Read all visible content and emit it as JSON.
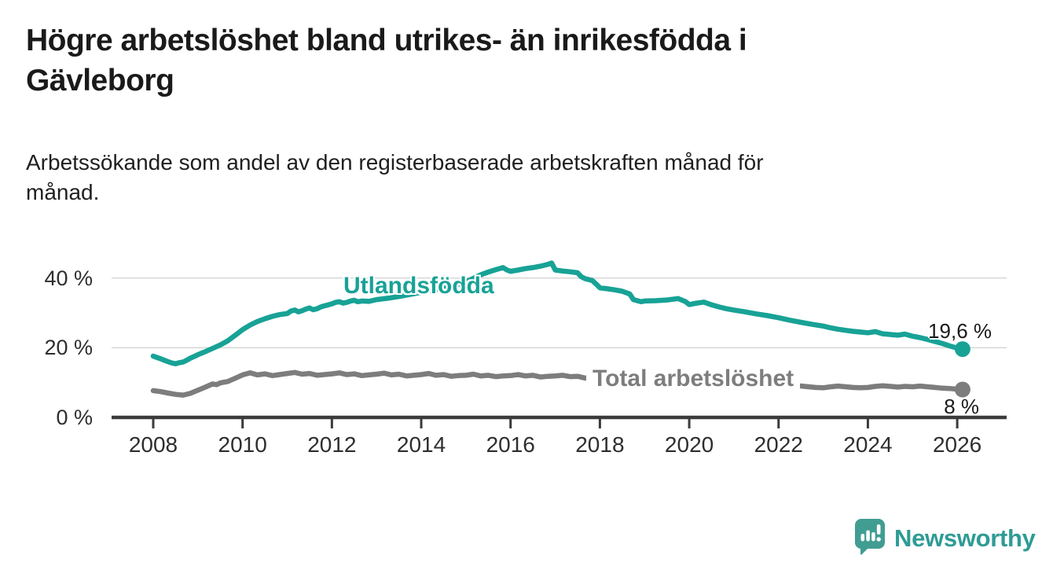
{
  "header": {
    "title": "Högre arbetslöshet bland utrikes- än inrikesfödda i\nGävleborg",
    "subtitle": "Arbetssökande som andel av den registerbaserade arbetskraften månad för\nmånad."
  },
  "chart_data": {
    "type": "line",
    "title": "Högre arbetslöshet bland utrikes- än inrikesfödda i Gävleborg",
    "xlabel": "",
    "ylabel": "Arbetssökande som andel av den registerbaserade arbetskraften",
    "xlim": [
      2007.1,
      2027.1
    ],
    "ylim": [
      0,
      47
    ],
    "grid": "horizontal",
    "legend_position": "inline-labels",
    "x_ticks": [
      {
        "value": 2008,
        "label": "2008"
      },
      {
        "value": 2010,
        "label": "2010"
      },
      {
        "value": 2012,
        "label": "2012"
      },
      {
        "value": 2014,
        "label": "2014"
      },
      {
        "value": 2016,
        "label": "2016"
      },
      {
        "value": 2018,
        "label": "2018"
      },
      {
        "value": 2020,
        "label": "2020"
      },
      {
        "value": 2022,
        "label": "2022"
      },
      {
        "value": 2024,
        "label": "2024"
      },
      {
        "value": 2026,
        "label": "2026"
      }
    ],
    "y_ticks": [
      {
        "value": 0,
        "label": "0 %"
      },
      {
        "value": 20,
        "label": "20 %"
      },
      {
        "value": 40,
        "label": "40 %"
      }
    ],
    "series": [
      {
        "name": "Utlandsfödda",
        "color": "#18A296",
        "end_label": "19,6 %",
        "end_value": 19.6,
        "points": [
          [
            2008.0,
            17.6
          ],
          [
            2008.08,
            17.2
          ],
          [
            2008.17,
            16.8
          ],
          [
            2008.25,
            16.4
          ],
          [
            2008.33,
            16.0
          ],
          [
            2008.42,
            15.6
          ],
          [
            2008.5,
            15.4
          ],
          [
            2008.58,
            15.7
          ],
          [
            2008.67,
            15.9
          ],
          [
            2008.75,
            16.4
          ],
          [
            2008.83,
            17.0
          ],
          [
            2008.92,
            17.5
          ],
          [
            2009.0,
            18.0
          ],
          [
            2009.17,
            18.9
          ],
          [
            2009.33,
            19.8
          ],
          [
            2009.5,
            20.8
          ],
          [
            2009.67,
            22.0
          ],
          [
            2009.83,
            23.5
          ],
          [
            2010.0,
            25.2
          ],
          [
            2010.17,
            26.5
          ],
          [
            2010.33,
            27.5
          ],
          [
            2010.5,
            28.3
          ],
          [
            2010.67,
            29.0
          ],
          [
            2010.83,
            29.5
          ],
          [
            2011.0,
            29.8
          ],
          [
            2011.08,
            30.5
          ],
          [
            2011.17,
            30.8
          ],
          [
            2011.25,
            30.3
          ],
          [
            2011.33,
            30.6
          ],
          [
            2011.42,
            31.1
          ],
          [
            2011.5,
            31.4
          ],
          [
            2011.58,
            30.9
          ],
          [
            2011.67,
            31.2
          ],
          [
            2011.75,
            31.7
          ],
          [
            2011.83,
            32.0
          ],
          [
            2011.92,
            32.3
          ],
          [
            2012.0,
            32.6
          ],
          [
            2012.08,
            33.0
          ],
          [
            2012.17,
            33.2
          ],
          [
            2012.25,
            32.8
          ],
          [
            2012.33,
            33.0
          ],
          [
            2012.42,
            33.4
          ],
          [
            2012.5,
            33.6
          ],
          [
            2012.58,
            33.2
          ],
          [
            2012.67,
            33.4
          ],
          [
            2012.83,
            33.3
          ],
          [
            2013.0,
            33.8
          ],
          [
            2013.25,
            34.2
          ],
          [
            2013.5,
            34.7
          ],
          [
            2013.75,
            35.3
          ],
          [
            2014.0,
            35.9
          ],
          [
            2014.25,
            36.5
          ],
          [
            2014.5,
            37.1
          ],
          [
            2014.75,
            37.9
          ],
          [
            2015.0,
            38.9
          ],
          [
            2015.17,
            39.9
          ],
          [
            2015.33,
            40.9
          ],
          [
            2015.5,
            41.7
          ],
          [
            2015.67,
            42.4
          ],
          [
            2015.83,
            43.0
          ],
          [
            2015.92,
            42.3
          ],
          [
            2016.0,
            41.9
          ],
          [
            2016.17,
            42.3
          ],
          [
            2016.33,
            42.7
          ],
          [
            2016.5,
            43.0
          ],
          [
            2016.67,
            43.4
          ],
          [
            2016.83,
            43.9
          ],
          [
            2016.92,
            44.3
          ],
          [
            2017.0,
            42.3
          ],
          [
            2017.17,
            42.0
          ],
          [
            2017.33,
            41.8
          ],
          [
            2017.5,
            41.5
          ],
          [
            2017.58,
            40.4
          ],
          [
            2017.67,
            39.8
          ],
          [
            2017.83,
            39.3
          ],
          [
            2017.92,
            38.2
          ],
          [
            2018.0,
            37.2
          ],
          [
            2018.17,
            36.9
          ],
          [
            2018.33,
            36.6
          ],
          [
            2018.5,
            36.2
          ],
          [
            2018.67,
            35.4
          ],
          [
            2018.75,
            33.8
          ],
          [
            2018.92,
            33.2
          ],
          [
            2019.0,
            33.4
          ],
          [
            2019.25,
            33.5
          ],
          [
            2019.5,
            33.7
          ],
          [
            2019.75,
            34.1
          ],
          [
            2019.92,
            33.2
          ],
          [
            2020.0,
            32.4
          ],
          [
            2020.17,
            32.8
          ],
          [
            2020.33,
            33.1
          ],
          [
            2020.5,
            32.3
          ],
          [
            2020.67,
            31.7
          ],
          [
            2020.83,
            31.2
          ],
          [
            2021.0,
            30.8
          ],
          [
            2021.25,
            30.3
          ],
          [
            2021.5,
            29.7
          ],
          [
            2021.75,
            29.2
          ],
          [
            2022.0,
            28.6
          ],
          [
            2022.25,
            27.9
          ],
          [
            2022.5,
            27.3
          ],
          [
            2022.75,
            26.7
          ],
          [
            2023.0,
            26.2
          ],
          [
            2023.17,
            25.7
          ],
          [
            2023.33,
            25.3
          ],
          [
            2023.5,
            25.0
          ],
          [
            2023.67,
            24.7
          ],
          [
            2023.83,
            24.5
          ],
          [
            2024.0,
            24.3
          ],
          [
            2024.17,
            24.6
          ],
          [
            2024.33,
            24.0
          ],
          [
            2024.5,
            23.8
          ],
          [
            2024.67,
            23.6
          ],
          [
            2024.83,
            23.9
          ],
          [
            2025.0,
            23.3
          ],
          [
            2025.17,
            22.9
          ],
          [
            2025.33,
            22.4
          ],
          [
            2025.5,
            21.8
          ],
          [
            2025.67,
            21.2
          ],
          [
            2025.83,
            20.5
          ],
          [
            2026.0,
            19.9
          ],
          [
            2026.12,
            19.6
          ]
        ]
      },
      {
        "name": "Total arbetslöshet",
        "color": "#7D7D7D",
        "end_label": "8 %",
        "end_value": 8,
        "points": [
          [
            2008.0,
            7.7
          ],
          [
            2008.17,
            7.4
          ],
          [
            2008.33,
            7.0
          ],
          [
            2008.5,
            6.6
          ],
          [
            2008.67,
            6.4
          ],
          [
            2008.83,
            6.9
          ],
          [
            2009.0,
            7.8
          ],
          [
            2009.17,
            8.7
          ],
          [
            2009.33,
            9.6
          ],
          [
            2009.42,
            9.4
          ],
          [
            2009.5,
            9.9
          ],
          [
            2009.67,
            10.3
          ],
          [
            2009.83,
            11.2
          ],
          [
            2010.0,
            12.2
          ],
          [
            2010.17,
            12.8
          ],
          [
            2010.33,
            12.2
          ],
          [
            2010.5,
            12.5
          ],
          [
            2010.67,
            12.0
          ],
          [
            2010.83,
            12.3
          ],
          [
            2011.0,
            12.6
          ],
          [
            2011.17,
            12.9
          ],
          [
            2011.33,
            12.4
          ],
          [
            2011.5,
            12.6
          ],
          [
            2011.67,
            12.1
          ],
          [
            2011.83,
            12.3
          ],
          [
            2012.0,
            12.5
          ],
          [
            2012.17,
            12.8
          ],
          [
            2012.33,
            12.3
          ],
          [
            2012.5,
            12.5
          ],
          [
            2012.67,
            12.0
          ],
          [
            2012.83,
            12.2
          ],
          [
            2013.0,
            12.4
          ],
          [
            2013.17,
            12.7
          ],
          [
            2013.33,
            12.2
          ],
          [
            2013.5,
            12.4
          ],
          [
            2013.67,
            11.9
          ],
          [
            2013.83,
            12.1
          ],
          [
            2014.0,
            12.3
          ],
          [
            2014.17,
            12.6
          ],
          [
            2014.33,
            12.1
          ],
          [
            2014.5,
            12.3
          ],
          [
            2014.67,
            11.8
          ],
          [
            2014.83,
            12.0
          ],
          [
            2015.0,
            12.1
          ],
          [
            2015.17,
            12.4
          ],
          [
            2015.33,
            11.9
          ],
          [
            2015.5,
            12.1
          ],
          [
            2015.67,
            11.7
          ],
          [
            2015.83,
            11.9
          ],
          [
            2016.0,
            12.0
          ],
          [
            2016.17,
            12.3
          ],
          [
            2016.33,
            11.9
          ],
          [
            2016.5,
            12.1
          ],
          [
            2016.67,
            11.6
          ],
          [
            2016.83,
            11.8
          ],
          [
            2017.0,
            11.9
          ],
          [
            2017.17,
            12.1
          ],
          [
            2017.33,
            11.7
          ],
          [
            2017.5,
            11.8
          ],
          [
            2017.67,
            11.3
          ],
          [
            2018.0,
            11.0
          ],
          [
            2018.5,
            10.6
          ],
          [
            2019.0,
            10.3
          ],
          [
            2019.5,
            10.1
          ],
          [
            2020.0,
            10.6
          ],
          [
            2020.5,
            11.2
          ],
          [
            2021.0,
            10.7
          ],
          [
            2021.5,
            10.1
          ],
          [
            2022.0,
            9.6
          ],
          [
            2022.33,
            9.2
          ],
          [
            2022.58,
            8.9
          ],
          [
            2022.67,
            8.8
          ],
          [
            2022.83,
            8.6
          ],
          [
            2023.0,
            8.5
          ],
          [
            2023.17,
            8.8
          ],
          [
            2023.33,
            9.0
          ],
          [
            2023.5,
            8.8
          ],
          [
            2023.67,
            8.6
          ],
          [
            2023.83,
            8.5
          ],
          [
            2024.0,
            8.6
          ],
          [
            2024.17,
            8.9
          ],
          [
            2024.33,
            9.1
          ],
          [
            2024.5,
            8.9
          ],
          [
            2024.67,
            8.7
          ],
          [
            2024.83,
            8.9
          ],
          [
            2025.0,
            8.8
          ],
          [
            2025.17,
            9.0
          ],
          [
            2025.33,
            8.8
          ],
          [
            2025.5,
            8.6
          ],
          [
            2025.67,
            8.4
          ],
          [
            2025.83,
            8.3
          ],
          [
            2026.0,
            8.1
          ],
          [
            2026.12,
            8.0
          ]
        ]
      }
    ]
  },
  "branding": {
    "logo_text": "Newsworthy",
    "logo_icon": "bar-chart-speech-bubble-icon",
    "logo_color": "#2E9C94",
    "icon_color": "#419D92"
  },
  "colors": {
    "accent_teal": "#18A296",
    "series_gray": "#7D7D7D",
    "gridline": "#D9D9D9",
    "axis": "#3B3B3B"
  }
}
